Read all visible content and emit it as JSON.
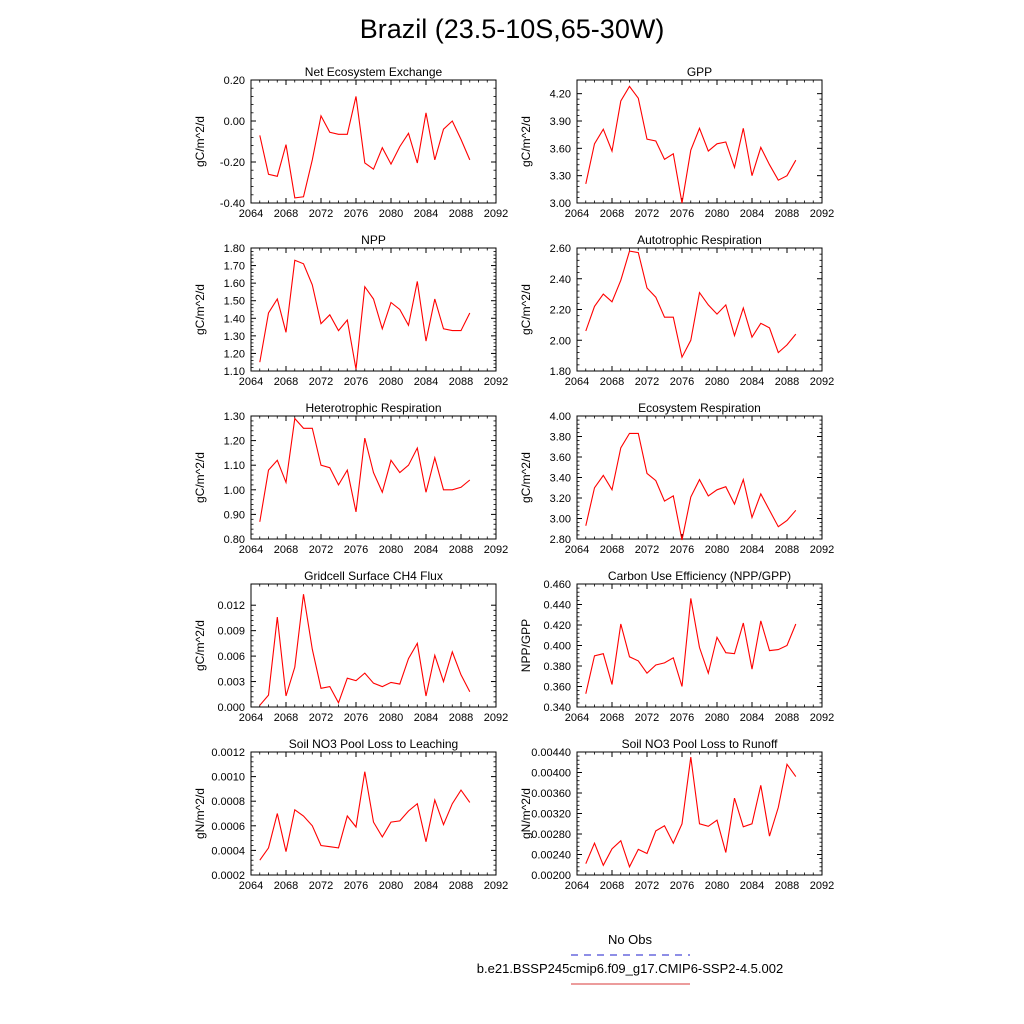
{
  "page": {
    "title": "Brazil (23.5-10S,65-30W)"
  },
  "legend": [
    {
      "label": "No Obs",
      "color": "#4a4ad8",
      "dash": true
    },
    {
      "label": "b.e21.BSSP245cmip6.f09_g17.CMIP6-SSP2-4.5.002",
      "color": "#e06060",
      "dash": false
    }
  ],
  "chart_data": [
    {
      "type": "line",
      "title": "Net Ecosystem Exchange",
      "ylabel": "gC/m^2/d",
      "xlim": [
        2064,
        2092
      ],
      "ylim": [
        -0.4,
        0.2
      ],
      "xticks": [
        2064,
        2068,
        2072,
        2076,
        2080,
        2084,
        2088,
        2092
      ],
      "xtick_labels": [
        "2064",
        "2068",
        "2072",
        "2076",
        "2080",
        "2084",
        "2088",
        "2092"
      ],
      "yticks": [
        -0.4,
        -0.2,
        0.0,
        0.2
      ],
      "ytick_labels": [
        "-0.40",
        "-0.20",
        "0.00",
        "0.20"
      ],
      "x": [
        2065,
        2066,
        2067,
        2068,
        2069,
        2070,
        2071,
        2072,
        2073,
        2074,
        2075,
        2076,
        2077,
        2078,
        2079,
        2080,
        2081,
        2082,
        2083,
        2084,
        2085,
        2086,
        2087,
        2088,
        2089
      ],
      "series": [
        {
          "color": "#ff0000",
          "values": [
            -0.07,
            -0.26,
            -0.27,
            -0.115,
            -0.375,
            -0.37,
            -0.19,
            0.025,
            -0.055,
            -0.065,
            -0.065,
            0.12,
            -0.205,
            -0.235,
            -0.13,
            -0.21,
            -0.125,
            -0.06,
            -0.205,
            0.04,
            -0.19,
            -0.04,
            0.0,
            -0.09,
            -0.19
          ]
        }
      ]
    },
    {
      "type": "line",
      "title": "GPP",
      "ylabel": "gC/m^2/d",
      "xlim": [
        2064,
        2092
      ],
      "ylim": [
        3.0,
        4.35
      ],
      "xticks": [
        2064,
        2068,
        2072,
        2076,
        2080,
        2084,
        2088,
        2092
      ],
      "xtick_labels": [
        "2064",
        "2068",
        "2072",
        "2076",
        "2080",
        "2084",
        "2088",
        "2092"
      ],
      "yticks": [
        3.0,
        3.3,
        3.6,
        3.9,
        4.2
      ],
      "ytick_labels": [
        "3.00",
        "3.30",
        "3.60",
        "3.90",
        "4.20"
      ],
      "x": [
        2065,
        2066,
        2067,
        2068,
        2069,
        2070,
        2071,
        2072,
        2073,
        2074,
        2075,
        2076,
        2077,
        2078,
        2079,
        2080,
        2081,
        2082,
        2083,
        2084,
        2085,
        2086,
        2087,
        2088,
        2089
      ],
      "series": [
        {
          "color": "#ff0000",
          "values": [
            3.21,
            3.65,
            3.81,
            3.57,
            4.12,
            4.28,
            4.15,
            3.7,
            3.68,
            3.48,
            3.54,
            3.0,
            3.58,
            3.82,
            3.57,
            3.65,
            3.67,
            3.39,
            3.82,
            3.3,
            3.61,
            3.42,
            3.25,
            3.3,
            3.47
          ]
        }
      ]
    },
    {
      "type": "line",
      "title": "NPP",
      "ylabel": "gC/m^2/d",
      "xlim": [
        2064,
        2092
      ],
      "ylim": [
        1.1,
        1.8
      ],
      "xticks": [
        2064,
        2068,
        2072,
        2076,
        2080,
        2084,
        2088,
        2092
      ],
      "xtick_labels": [
        "2064",
        "2068",
        "2072",
        "2076",
        "2080",
        "2084",
        "2088",
        "2092"
      ],
      "yticks": [
        1.1,
        1.2,
        1.3,
        1.4,
        1.5,
        1.6,
        1.7,
        1.8
      ],
      "ytick_labels": [
        "1.10",
        "1.20",
        "1.30",
        "1.40",
        "1.50",
        "1.60",
        "1.70",
        "1.80"
      ],
      "x": [
        2065,
        2066,
        2067,
        2068,
        2069,
        2070,
        2071,
        2072,
        2073,
        2074,
        2075,
        2076,
        2077,
        2078,
        2079,
        2080,
        2081,
        2082,
        2083,
        2084,
        2085,
        2086,
        2087,
        2088,
        2089
      ],
      "series": [
        {
          "color": "#ff0000",
          "values": [
            1.15,
            1.43,
            1.51,
            1.32,
            1.73,
            1.71,
            1.59,
            1.37,
            1.42,
            1.33,
            1.39,
            1.11,
            1.58,
            1.51,
            1.34,
            1.49,
            1.45,
            1.36,
            1.61,
            1.27,
            1.51,
            1.34,
            1.33,
            1.33,
            1.43
          ]
        }
      ]
    },
    {
      "type": "line",
      "title": "Autotrophic Respiration",
      "ylabel": "gC/m^2/d",
      "xlim": [
        2064,
        2092
      ],
      "ylim": [
        1.8,
        2.6
      ],
      "xticks": [
        2064,
        2068,
        2072,
        2076,
        2080,
        2084,
        2088,
        2092
      ],
      "xtick_labels": [
        "2064",
        "2068",
        "2072",
        "2076",
        "2080",
        "2084",
        "2088",
        "2092"
      ],
      "yticks": [
        1.8,
        2.0,
        2.2,
        2.4,
        2.6
      ],
      "ytick_labels": [
        "1.80",
        "2.00",
        "2.20",
        "2.40",
        "2.60"
      ],
      "x": [
        2065,
        2066,
        2067,
        2068,
        2069,
        2070,
        2071,
        2072,
        2073,
        2074,
        2075,
        2076,
        2077,
        2078,
        2079,
        2080,
        2081,
        2082,
        2083,
        2084,
        2085,
        2086,
        2087,
        2088,
        2089
      ],
      "series": [
        {
          "color": "#ff0000",
          "values": [
            2.06,
            2.22,
            2.3,
            2.25,
            2.39,
            2.58,
            2.57,
            2.34,
            2.28,
            2.15,
            2.15,
            1.89,
            2.0,
            2.31,
            2.23,
            2.17,
            2.23,
            2.03,
            2.21,
            2.02,
            2.11,
            2.08,
            1.92,
            1.97,
            2.04
          ]
        }
      ]
    },
    {
      "type": "line",
      "title": "Heterotrophic Respiration",
      "ylabel": "gC/m^2/d",
      "xlim": [
        2064,
        2092
      ],
      "ylim": [
        0.8,
        1.3
      ],
      "xticks": [
        2064,
        2068,
        2072,
        2076,
        2080,
        2084,
        2088,
        2092
      ],
      "xtick_labels": [
        "2064",
        "2068",
        "2072",
        "2076",
        "2080",
        "2084",
        "2088",
        "2092"
      ],
      "yticks": [
        0.8,
        0.9,
        1.0,
        1.1,
        1.2,
        1.3
      ],
      "ytick_labels": [
        "0.80",
        "0.90",
        "1.00",
        "1.10",
        "1.20",
        "1.30"
      ],
      "x": [
        2065,
        2066,
        2067,
        2068,
        2069,
        2070,
        2071,
        2072,
        2073,
        2074,
        2075,
        2076,
        2077,
        2078,
        2079,
        2080,
        2081,
        2082,
        2083,
        2084,
        2085,
        2086,
        2087,
        2088,
        2089
      ],
      "series": [
        {
          "color": "#ff0000",
          "values": [
            0.87,
            1.08,
            1.12,
            1.03,
            1.29,
            1.25,
            1.25,
            1.1,
            1.09,
            1.02,
            1.08,
            0.91,
            1.21,
            1.07,
            0.99,
            1.12,
            1.07,
            1.1,
            1.17,
            0.99,
            1.13,
            1.0,
            1.0,
            1.01,
            1.04
          ]
        }
      ]
    },
    {
      "type": "line",
      "title": "Ecosystem Respiration",
      "ylabel": "gC/m^2/d",
      "xlim": [
        2064,
        2092
      ],
      "ylim": [
        2.8,
        4.0
      ],
      "xticks": [
        2064,
        2068,
        2072,
        2076,
        2080,
        2084,
        2088,
        2092
      ],
      "xtick_labels": [
        "2064",
        "2068",
        "2072",
        "2076",
        "2080",
        "2084",
        "2088",
        "2092"
      ],
      "yticks": [
        2.8,
        3.0,
        3.2,
        3.4,
        3.6,
        3.8,
        4.0
      ],
      "ytick_labels": [
        "2.80",
        "3.00",
        "3.20",
        "3.40",
        "3.60",
        "3.80",
        "4.00"
      ],
      "x": [
        2065,
        2066,
        2067,
        2068,
        2069,
        2070,
        2071,
        2072,
        2073,
        2074,
        2075,
        2076,
        2077,
        2078,
        2079,
        2080,
        2081,
        2082,
        2083,
        2084,
        2085,
        2086,
        2087,
        2088,
        2089
      ],
      "series": [
        {
          "color": "#ff0000",
          "values": [
            2.93,
            3.3,
            3.42,
            3.28,
            3.69,
            3.83,
            3.83,
            3.44,
            3.37,
            3.17,
            3.22,
            2.79,
            3.21,
            3.38,
            3.22,
            3.28,
            3.31,
            3.14,
            3.38,
            3.01,
            3.24,
            3.08,
            2.92,
            2.98,
            3.08
          ]
        }
      ]
    },
    {
      "type": "line",
      "title": "Gridcell Surface CH4 Flux",
      "ylabel": "gC/m^2/d",
      "xlim": [
        2064,
        2092
      ],
      "ylim": [
        0.0,
        0.0145
      ],
      "xticks": [
        2064,
        2068,
        2072,
        2076,
        2080,
        2084,
        2088,
        2092
      ],
      "xtick_labels": [
        "2064",
        "2068",
        "2072",
        "2076",
        "2080",
        "2084",
        "2088",
        "2092"
      ],
      "yticks": [
        0.0,
        0.003,
        0.006,
        0.009,
        0.012
      ],
      "ytick_labels": [
        "0.000",
        "0.003",
        "0.006",
        "0.009",
        "0.012"
      ],
      "x": [
        2065,
        2066,
        2067,
        2068,
        2069,
        2070,
        2071,
        2072,
        2073,
        2074,
        2075,
        2076,
        2077,
        2078,
        2079,
        2080,
        2081,
        2082,
        2083,
        2084,
        2085,
        2086,
        2087,
        2088,
        2089
      ],
      "series": [
        {
          "color": "#ff0000",
          "values": [
            0.0002,
            0.0014,
            0.0106,
            0.0013,
            0.0047,
            0.0133,
            0.0068,
            0.0022,
            0.0024,
            0.0005,
            0.0034,
            0.0031,
            0.004,
            0.0028,
            0.0024,
            0.0029,
            0.0027,
            0.0057,
            0.0075,
            0.0013,
            0.0061,
            0.003,
            0.0065,
            0.0038,
            0.0018
          ]
        }
      ]
    },
    {
      "type": "line",
      "title": "Carbon Use Efficiency (NPP/GPP)",
      "ylabel": "NPP/GPP",
      "xlim": [
        2064,
        2092
      ],
      "ylim": [
        0.34,
        0.46
      ],
      "xticks": [
        2064,
        2068,
        2072,
        2076,
        2080,
        2084,
        2088,
        2092
      ],
      "xtick_labels": [
        "2064",
        "2068",
        "2072",
        "2076",
        "2080",
        "2084",
        "2088",
        "2092"
      ],
      "yticks": [
        0.34,
        0.36,
        0.38,
        0.4,
        0.42,
        0.44,
        0.46
      ],
      "ytick_labels": [
        "0.340",
        "0.360",
        "0.380",
        "0.400",
        "0.420",
        "0.440",
        "0.460"
      ],
      "x": [
        2065,
        2066,
        2067,
        2068,
        2069,
        2070,
        2071,
        2072,
        2073,
        2074,
        2075,
        2076,
        2077,
        2078,
        2079,
        2080,
        2081,
        2082,
        2083,
        2084,
        2085,
        2086,
        2087,
        2088,
        2089
      ],
      "series": [
        {
          "color": "#ff0000",
          "values": [
            0.353,
            0.39,
            0.392,
            0.362,
            0.421,
            0.389,
            0.385,
            0.373,
            0.381,
            0.383,
            0.388,
            0.36,
            0.446,
            0.398,
            0.373,
            0.408,
            0.393,
            0.392,
            0.422,
            0.377,
            0.424,
            0.395,
            0.396,
            0.4,
            0.421
          ]
        }
      ]
    },
    {
      "type": "line",
      "title": "Soil NO3 Pool Loss to Leaching",
      "ylabel": "gN/m^2/d",
      "xlim": [
        2064,
        2092
      ],
      "ylim": [
        0.0002,
        0.0012
      ],
      "xticks": [
        2064,
        2068,
        2072,
        2076,
        2080,
        2084,
        2088,
        2092
      ],
      "xtick_labels": [
        "2064",
        "2068",
        "2072",
        "2076",
        "2080",
        "2084",
        "2088",
        "2092"
      ],
      "yticks": [
        0.0002,
        0.0004,
        0.0006,
        0.0008,
        0.001,
        0.0012
      ],
      "ytick_labels": [
        "0.0002",
        "0.0004",
        "0.0006",
        "0.0008",
        "0.0010",
        "0.0012"
      ],
      "x": [
        2065,
        2066,
        2067,
        2068,
        2069,
        2070,
        2071,
        2072,
        2073,
        2074,
        2075,
        2076,
        2077,
        2078,
        2079,
        2080,
        2081,
        2082,
        2083,
        2084,
        2085,
        2086,
        2087,
        2088,
        2089
      ],
      "series": [
        {
          "color": "#ff0000",
          "values": [
            0.00032,
            0.00042,
            0.0007,
            0.00039,
            0.00073,
            0.00068,
            0.0006,
            0.00044,
            0.00043,
            0.00042,
            0.00068,
            0.00059,
            0.00104,
            0.00063,
            0.00051,
            0.00063,
            0.00064,
            0.00072,
            0.00078,
            0.00047,
            0.00081,
            0.00061,
            0.00078,
            0.00089,
            0.00079
          ]
        }
      ]
    },
    {
      "type": "line",
      "title": "Soil NO3 Pool Loss to Runoff",
      "ylabel": "gN/m^2/d",
      "xlim": [
        2064,
        2092
      ],
      "ylim": [
        0.002,
        0.0044
      ],
      "xticks": [
        2064,
        2068,
        2072,
        2076,
        2080,
        2084,
        2088,
        2092
      ],
      "xtick_labels": [
        "2064",
        "2068",
        "2072",
        "2076",
        "2080",
        "2084",
        "2088",
        "2092"
      ],
      "yticks": [
        0.002,
        0.0024,
        0.0028,
        0.0032,
        0.0036,
        0.004,
        0.0044
      ],
      "ytick_labels": [
        "0.00200",
        "0.00240",
        "0.00280",
        "0.00320",
        "0.00360",
        "0.00400",
        "0.00440"
      ],
      "x": [
        2065,
        2066,
        2067,
        2068,
        2069,
        2070,
        2071,
        2072,
        2073,
        2074,
        2075,
        2076,
        2077,
        2078,
        2079,
        2080,
        2081,
        2082,
        2083,
        2084,
        2085,
        2086,
        2087,
        2088,
        2089
      ],
      "series": [
        {
          "color": "#ff0000",
          "values": [
            0.00222,
            0.00262,
            0.00219,
            0.00251,
            0.00267,
            0.00216,
            0.0025,
            0.00242,
            0.00286,
            0.00296,
            0.00262,
            0.003,
            0.0043,
            0.003,
            0.00295,
            0.00307,
            0.00244,
            0.0035,
            0.00294,
            0.003,
            0.00375,
            0.00276,
            0.00332,
            0.00416,
            0.00392
          ]
        }
      ]
    }
  ]
}
